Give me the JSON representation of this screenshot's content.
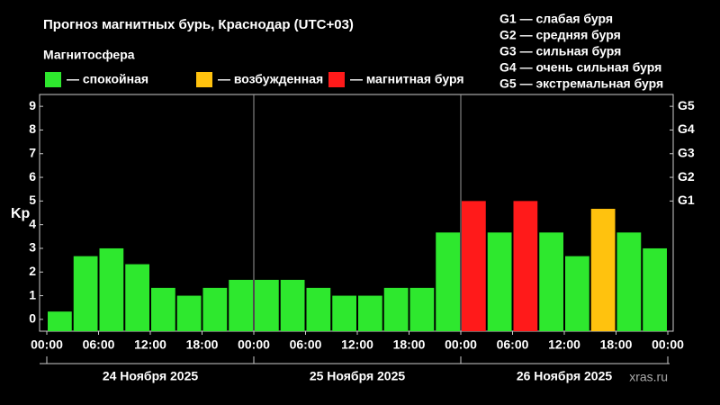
{
  "chart_data": {
    "type": "bar",
    "title": "Прогноз магнитных бурь, Краснодар (UTC+03)",
    "subtitle": "Магнитосфера",
    "legend": [
      {
        "label": "— спокойная",
        "color": "#2ee82e"
      },
      {
        "label": "— возбужденная",
        "color": "#ffc20e"
      },
      {
        "label": "— магнитная буря",
        "color": "#ff1a1a"
      }
    ],
    "g_legend": [
      "G1 — слабая буря",
      "G2 — средняя буря",
      "G3 — сильная буря",
      "G4 — очень сильная буря",
      "G5 — экстремальная буря"
    ],
    "y_label": "Kp",
    "x": [
      0,
      3,
      6,
      9,
      12,
      15,
      18,
      21,
      24,
      27,
      30,
      33,
      36,
      39,
      42,
      45,
      48,
      51,
      54,
      57,
      60,
      63,
      66,
      69
    ],
    "values": [
      0.33,
      2.67,
      3.0,
      2.33,
      1.33,
      1.0,
      1.33,
      1.67,
      1.67,
      1.67,
      1.33,
      1.0,
      1.0,
      1.33,
      1.33,
      3.67,
      5.0,
      3.67,
      5.0,
      3.67,
      2.67,
      4.67,
      3.67,
      3.0
    ],
    "bar_colors": [
      "#2ee82e",
      "#2ee82e",
      "#2ee82e",
      "#2ee82e",
      "#2ee82e",
      "#2ee82e",
      "#2ee82e",
      "#2ee82e",
      "#2ee82e",
      "#2ee82e",
      "#2ee82e",
      "#2ee82e",
      "#2ee82e",
      "#2ee82e",
      "#2ee82e",
      "#2ee82e",
      "#ff1a1a",
      "#2ee82e",
      "#ff1a1a",
      "#2ee82e",
      "#2ee82e",
      "#ffc20e",
      "#2ee82e",
      "#2ee82e"
    ],
    "xlim": [
      0,
      72
    ],
    "xticks": [
      {
        "value": 0,
        "label": "00:00"
      },
      {
        "value": 6,
        "label": "06:00"
      },
      {
        "value": 12,
        "label": "12:00"
      },
      {
        "value": 18,
        "label": "18:00"
      },
      {
        "value": 24,
        "label": "00:00"
      },
      {
        "value": 30,
        "label": "06:00"
      },
      {
        "value": 36,
        "label": "12:00"
      },
      {
        "value": 42,
        "label": "18:00"
      },
      {
        "value": 48,
        "label": "00:00"
      },
      {
        "value": 54,
        "label": "06:00"
      },
      {
        "value": 60,
        "label": "12:00"
      },
      {
        "value": 66,
        "label": "18:00"
      },
      {
        "value": 72,
        "label": "00:00"
      }
    ],
    "days": [
      "24 Ноября 2025",
      "25 Ноября 2025",
      "26 Ноября 2025"
    ],
    "ylim": [
      -0.5,
      9.5
    ],
    "yticks": [
      0,
      1,
      2,
      3,
      4,
      5,
      6,
      7,
      8,
      9
    ],
    "y2lim": [
      -0.5,
      9.5
    ],
    "y2ticks": [
      {
        "value": 5,
        "label": "G1"
      },
      {
        "value": 6,
        "label": "G2"
      },
      {
        "value": 7,
        "label": "G3"
      },
      {
        "value": 8,
        "label": "G4"
      },
      {
        "value": 9,
        "label": "G5"
      }
    ],
    "watermark": "xras.ru"
  }
}
